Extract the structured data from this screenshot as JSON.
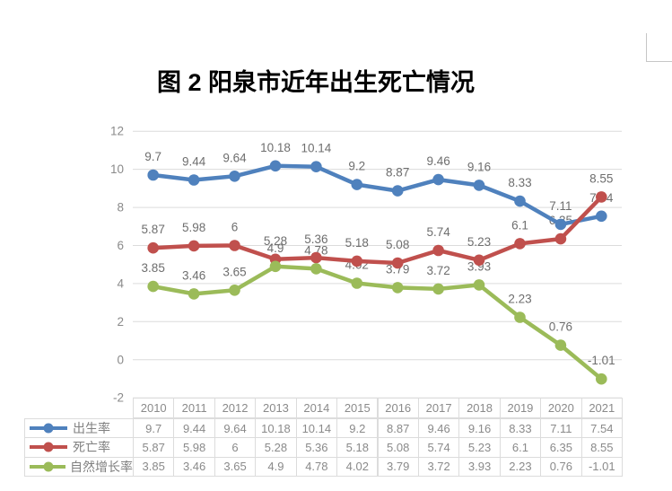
{
  "document": {
    "title": "图 2  阳泉市近年出生死亡情况"
  },
  "colors": {
    "birth_rate": "#4F81BD",
    "death_rate": "#C0504D",
    "natural_growth_rate": "#9BBB59",
    "gridline": "#dcdcdc",
    "axis_text": "#8a8a8a",
    "data_label_text": "#6e6e6e",
    "table_border": "#dcdcdc",
    "corner_mark": "#c6c6c6"
  },
  "chart_data": {
    "type": "line",
    "title": "图 2  阳泉市近年出生死亡情况",
    "categories": [
      "2010",
      "2011",
      "2012",
      "2013",
      "2014",
      "2015",
      "2016",
      "2017",
      "2018",
      "2019",
      "2020",
      "2021"
    ],
    "series": [
      {
        "name": "出生率",
        "color": "#4F81BD",
        "values": [
          9.7,
          9.44,
          9.64,
          10.18,
          10.14,
          9.2,
          8.87,
          9.46,
          9.16,
          8.33,
          7.11,
          7.54
        ]
      },
      {
        "name": "死亡率",
        "color": "#C0504D",
        "values": [
          5.87,
          5.98,
          6,
          5.28,
          5.36,
          5.18,
          5.08,
          5.74,
          5.23,
          6.1,
          6.35,
          8.55
        ]
      },
      {
        "name": "自然增长率",
        "color": "#9BBB59",
        "values": [
          3.85,
          3.46,
          3.65,
          4.9,
          4.78,
          4.02,
          3.79,
          3.72,
          3.93,
          2.23,
          0.76,
          -1.01
        ]
      }
    ],
    "xlabel": "",
    "ylabel": "",
    "y_axis": {
      "min": -2,
      "max": 12,
      "step": 2,
      "ticks": [
        12,
        10,
        8,
        6,
        4,
        2,
        0,
        -2
      ]
    },
    "ylim": [
      -2,
      12
    ],
    "grid": true,
    "data_labels": true,
    "data_table": true,
    "legend_position": "data-table-left",
    "marker": "circle"
  }
}
